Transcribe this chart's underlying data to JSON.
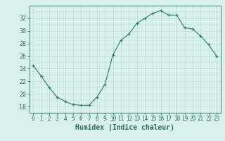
{
  "x": [
    0,
    1,
    2,
    3,
    4,
    5,
    6,
    7,
    8,
    9,
    10,
    11,
    12,
    13,
    14,
    15,
    16,
    17,
    18,
    19,
    20,
    21,
    22,
    23
  ],
  "y": [
    24.5,
    22.8,
    21.0,
    19.5,
    18.8,
    18.3,
    18.2,
    18.2,
    19.5,
    21.5,
    26.2,
    28.5,
    29.5,
    31.2,
    32.0,
    32.8,
    33.2,
    32.5,
    32.5,
    30.5,
    30.3,
    29.2,
    27.8,
    26.0
  ],
  "line_color": "#2e7d6e",
  "marker_color": "#2e7d6e",
  "bg_color": "#d8f0ee",
  "grid_color_major": "#c0dcd8",
  "grid_color_minor": "#c8e8e4",
  "xlabel": "Humidex (Indice chaleur)",
  "ylim": [
    17,
    34
  ],
  "xlim": [
    -0.5,
    23.5
  ],
  "yticks": [
    18,
    20,
    22,
    24,
    26,
    28,
    30,
    32
  ],
  "xticks": [
    0,
    1,
    2,
    3,
    4,
    5,
    6,
    7,
    8,
    9,
    10,
    11,
    12,
    13,
    14,
    15,
    16,
    17,
    18,
    19,
    20,
    21,
    22,
    23
  ],
  "tick_font_size": 6,
  "label_font_size": 7
}
